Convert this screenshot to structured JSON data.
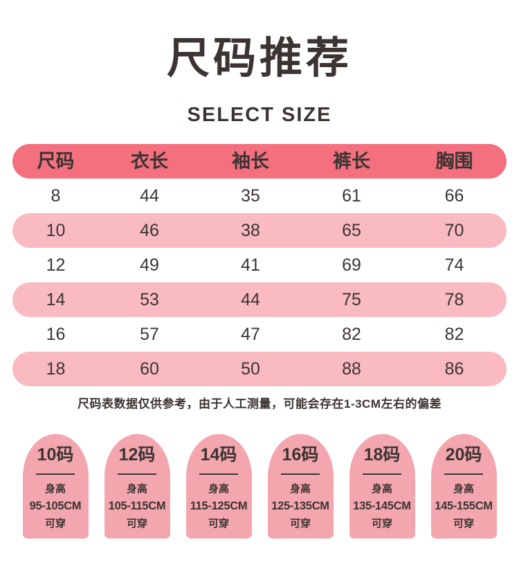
{
  "page": {
    "title": "尺码推荐",
    "subtitle": "SELECT SIZE",
    "note": "尺码表数据仅供参考，由于人工测量，可能会存在1-3CM左右的偏差"
  },
  "colors": {
    "header_rose": "#f4707f",
    "row_pink": "#f9bac1",
    "card_pink": "#f4a6ae",
    "text_dark": "#3b3432"
  },
  "size_table": {
    "columns": [
      "尺码",
      "衣长",
      "袖长",
      "裤长",
      "胸围"
    ],
    "rows": [
      [
        "8",
        "44",
        "35",
        "61",
        "66"
      ],
      [
        "10",
        "46",
        "38",
        "65",
        "70"
      ],
      [
        "12",
        "49",
        "41",
        "69",
        "74"
      ],
      [
        "14",
        "53",
        "44",
        "75",
        "78"
      ],
      [
        "16",
        "57",
        "47",
        "82",
        "82"
      ],
      [
        "18",
        "60",
        "50",
        "88",
        "86"
      ]
    ]
  },
  "height_cards": [
    {
      "size": "10码",
      "label": "身高",
      "range": "95-105CM",
      "suffix": "可穿"
    },
    {
      "size": "12码",
      "label": "身高",
      "range": "105-115CM",
      "suffix": "可穿"
    },
    {
      "size": "14码",
      "label": "身高",
      "range": "115-125CM",
      "suffix": "可穿"
    },
    {
      "size": "16码",
      "label": "身高",
      "range": "125-135CM",
      "suffix": "可穿"
    },
    {
      "size": "18码",
      "label": "身高",
      "range": "135-145CM",
      "suffix": "可穿"
    },
    {
      "size": "20码",
      "label": "身高",
      "range": "145-155CM",
      "suffix": "可穿"
    }
  ]
}
